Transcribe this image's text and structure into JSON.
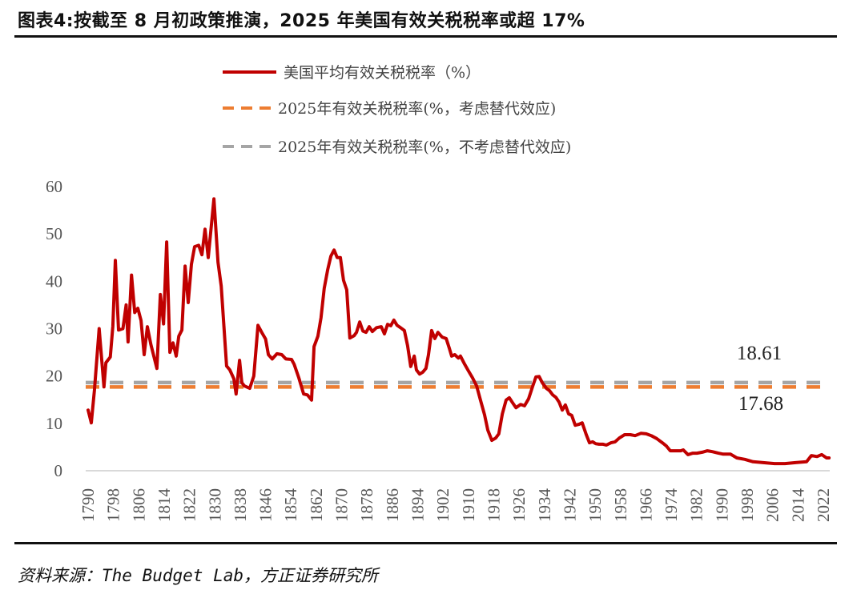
{
  "header": {
    "title": "图表4:按截至 8 月初政策推演，2025 年美国有效关税税率或超 17%"
  },
  "footer": {
    "source": "资料来源：The Budget Lab，方正证券研究所"
  },
  "colors": {
    "series_main": "#c00000",
    "series_with_substitution": "#ed7d31",
    "series_without_substitution": "#a5a5a5",
    "axis": "#d9d9d9"
  },
  "chart_data": {
    "type": "line",
    "title": "美国平均有效关税税率",
    "xlabel": "",
    "ylabel": "",
    "xlim": [
      1790,
      2024
    ],
    "ylim": [
      0,
      60
    ],
    "grid": false,
    "legend_position": "top-center",
    "y_ticks": [
      "0",
      "10",
      "20",
      "30",
      "40",
      "50",
      "60"
    ],
    "x_ticks": [
      "1790",
      "1798",
      "1806",
      "1814",
      "1822",
      "1830",
      "1838",
      "1846",
      "1854",
      "1862",
      "1870",
      "1878",
      "1886",
      "1894",
      "1902",
      "1910",
      "1918",
      "1926",
      "1934",
      "1942",
      "1950",
      "1958",
      "1966",
      "1974",
      "1982",
      "1990",
      "1998",
      "2006",
      "2014",
      "2022"
    ],
    "legend": [
      "美国平均有效关税税率（%）",
      "2025年有效关税税率(%，考虑替代效应)",
      "2025年有效关税税率(%，不考虑替代效应)"
    ],
    "series": [
      {
        "name": "美国平均有效关税税率（%）",
        "style": "solid",
        "x": [
          1790,
          1791,
          1792,
          1793.5,
          1795,
          1795.6,
          1797,
          1797.8,
          1798.6,
          1799.6,
          1801,
          1802,
          1802.6,
          1803.7,
          1804.7,
          1805.7,
          1806.7,
          1807.7,
          1808.7,
          1809.8,
          1811.7,
          1812.8,
          1813.8,
          1814.8,
          1815.8,
          1816.8,
          1817.8,
          1818.6,
          1819.6,
          1820.6,
          1821.6,
          1822.6,
          1823.6,
          1824.9,
          1825.9,
          1826.9,
          1827.9,
          1829.7,
          1831,
          1832,
          1833.7,
          1834.7,
          1836,
          1836.7,
          1837.8,
          1838.5,
          1839.3,
          1841,
          1842.3,
          1843.6,
          1844.8,
          1846,
          1846.9,
          1848.1,
          1849.6,
          1851.1,
          1852.4,
          1854.2,
          1855,
          1856.5,
          1858,
          1859.2,
          1860.5,
          1861.3,
          1862.5,
          1863.5,
          1864.5,
          1865.6,
          1866.6,
          1867.6,
          1868.6,
          1869.6,
          1870.6,
          1871.6,
          1872.6,
          1873.9,
          1874.7,
          1875.7,
          1876.7,
          1877.7,
          1878.7,
          1879.7,
          1881,
          1882.5,
          1883.5,
          1884.5,
          1885.5,
          1886.5,
          1887.5,
          1888.6,
          1889.8,
          1890.8,
          1891.8,
          1892.9,
          1893.6,
          1894.6,
          1895.6,
          1896.6,
          1897.4,
          1898.4,
          1899.4,
          1900.4,
          1901.7,
          1903,
          1904,
          1904.7,
          1905.7,
          1906.8,
          1907.5,
          1908.8,
          1910,
          1911.3,
          1912.6,
          1913.8,
          1915.1,
          1916.1,
          1917.4,
          1918.6,
          1919.6,
          1920.7,
          1921.9,
          1922.9,
          1923.9,
          1925,
          1926.5,
          1927.7,
          1929,
          1930.3,
          1931.3,
          1932.3,
          1933.3,
          1934.6,
          1935.6,
          1936.6,
          1937.6,
          1938.6,
          1939.6,
          1940.6,
          1941.6,
          1942.6,
          1943.7,
          1944.9,
          1945.9,
          1947.2,
          1948.2,
          1949.2,
          1950.2,
          1951.2,
          1952.5,
          1953.5,
          1955,
          1956.3,
          1957.6,
          1959.3,
          1961.1,
          1962.6,
          1964.4,
          1966.1,
          1967.7,
          1969.4,
          1971.2,
          1972.5,
          1973.7,
          1975.2,
          1977,
          1977.8,
          1979.3,
          1980.8,
          1982.1,
          1983.8,
          1985.4,
          1987.1,
          1988.9,
          1990.4,
          1992.7,
          1994.7,
          1997.2,
          1999.8,
          2003,
          2006.6,
          2009.9,
          2013.2,
          2016.7,
          2018.2,
          2020,
          2021.5,
          2023,
          2023.8
        ],
        "values": [
          12.8,
          10.1,
          17,
          30,
          17.7,
          22.8,
          24,
          30.5,
          44.4,
          29.7,
          30,
          35,
          27.2,
          41.3,
          33.4,
          34.3,
          31.7,
          24.5,
          30.4,
          26.7,
          21.6,
          37.2,
          31,
          48.3,
          25,
          27,
          24.2,
          28.4,
          29.7,
          43.2,
          35.5,
          43.6,
          47.3,
          47.6,
          45.6,
          51,
          45,
          57.4,
          44,
          39,
          22.1,
          21.3,
          19.4,
          16.2,
          23.3,
          18.6,
          17.9,
          17.4,
          20,
          30.7,
          29.2,
          27.8,
          24.5,
          23.6,
          24.7,
          24.5,
          23.6,
          23.5,
          22.5,
          19.6,
          16.2,
          16,
          14.9,
          26.2,
          28.4,
          32.3,
          38.5,
          42.4,
          45.3,
          46.6,
          45,
          45,
          40.2,
          38.2,
          28,
          28.5,
          29.2,
          31.4,
          29.5,
          29.2,
          30.4,
          29.4,
          30.2,
          30.4,
          28.9,
          30.9,
          30.6,
          31.8,
          30.7,
          30.2,
          29.6,
          26.4,
          22,
          24.2,
          21.3,
          20.4,
          20.8,
          21.6,
          24.5,
          29.6,
          27.9,
          29.2,
          28.2,
          27.9,
          25.8,
          24.2,
          24.5,
          23.8,
          24.2,
          22.5,
          21.1,
          19.6,
          17.9,
          14.9,
          11.8,
          8.6,
          6.4,
          6.9,
          7.8,
          12,
          14.9,
          15.4,
          14.4,
          13.3,
          14,
          13.7,
          15.2,
          17.9,
          19.8,
          19.9,
          18.6,
          17.4,
          16.9,
          16,
          15.5,
          14.5,
          12.8,
          13.9,
          12,
          11.7,
          9.6,
          9.8,
          10.1,
          7.6,
          5.9,
          6.1,
          5.7,
          5.6,
          5.6,
          5.4,
          5.9,
          6.1,
          6.9,
          7.6,
          7.6,
          7.4,
          7.9,
          7.8,
          7.4,
          6.8,
          5.9,
          5.2,
          4.2,
          4.2,
          4.2,
          4.4,
          3.4,
          3.7,
          3.7,
          3.9,
          4.2,
          4,
          3.7,
          3.5,
          3.5,
          2.7,
          2.4,
          1.9,
          1.7,
          1.5,
          1.5,
          1.7,
          1.9,
          3.2,
          3,
          3.4,
          2.7,
          2.7
        ]
      },
      {
        "name": "2025年有效关税税率(%，考虑替代效应)",
        "style": "dashed",
        "constant": 17.68,
        "label": "17.68"
      },
      {
        "name": "2025年有效关税税率(%，不考虑替代效应)",
        "style": "dashed",
        "constant": 18.61,
        "label": "18.61"
      }
    ]
  }
}
